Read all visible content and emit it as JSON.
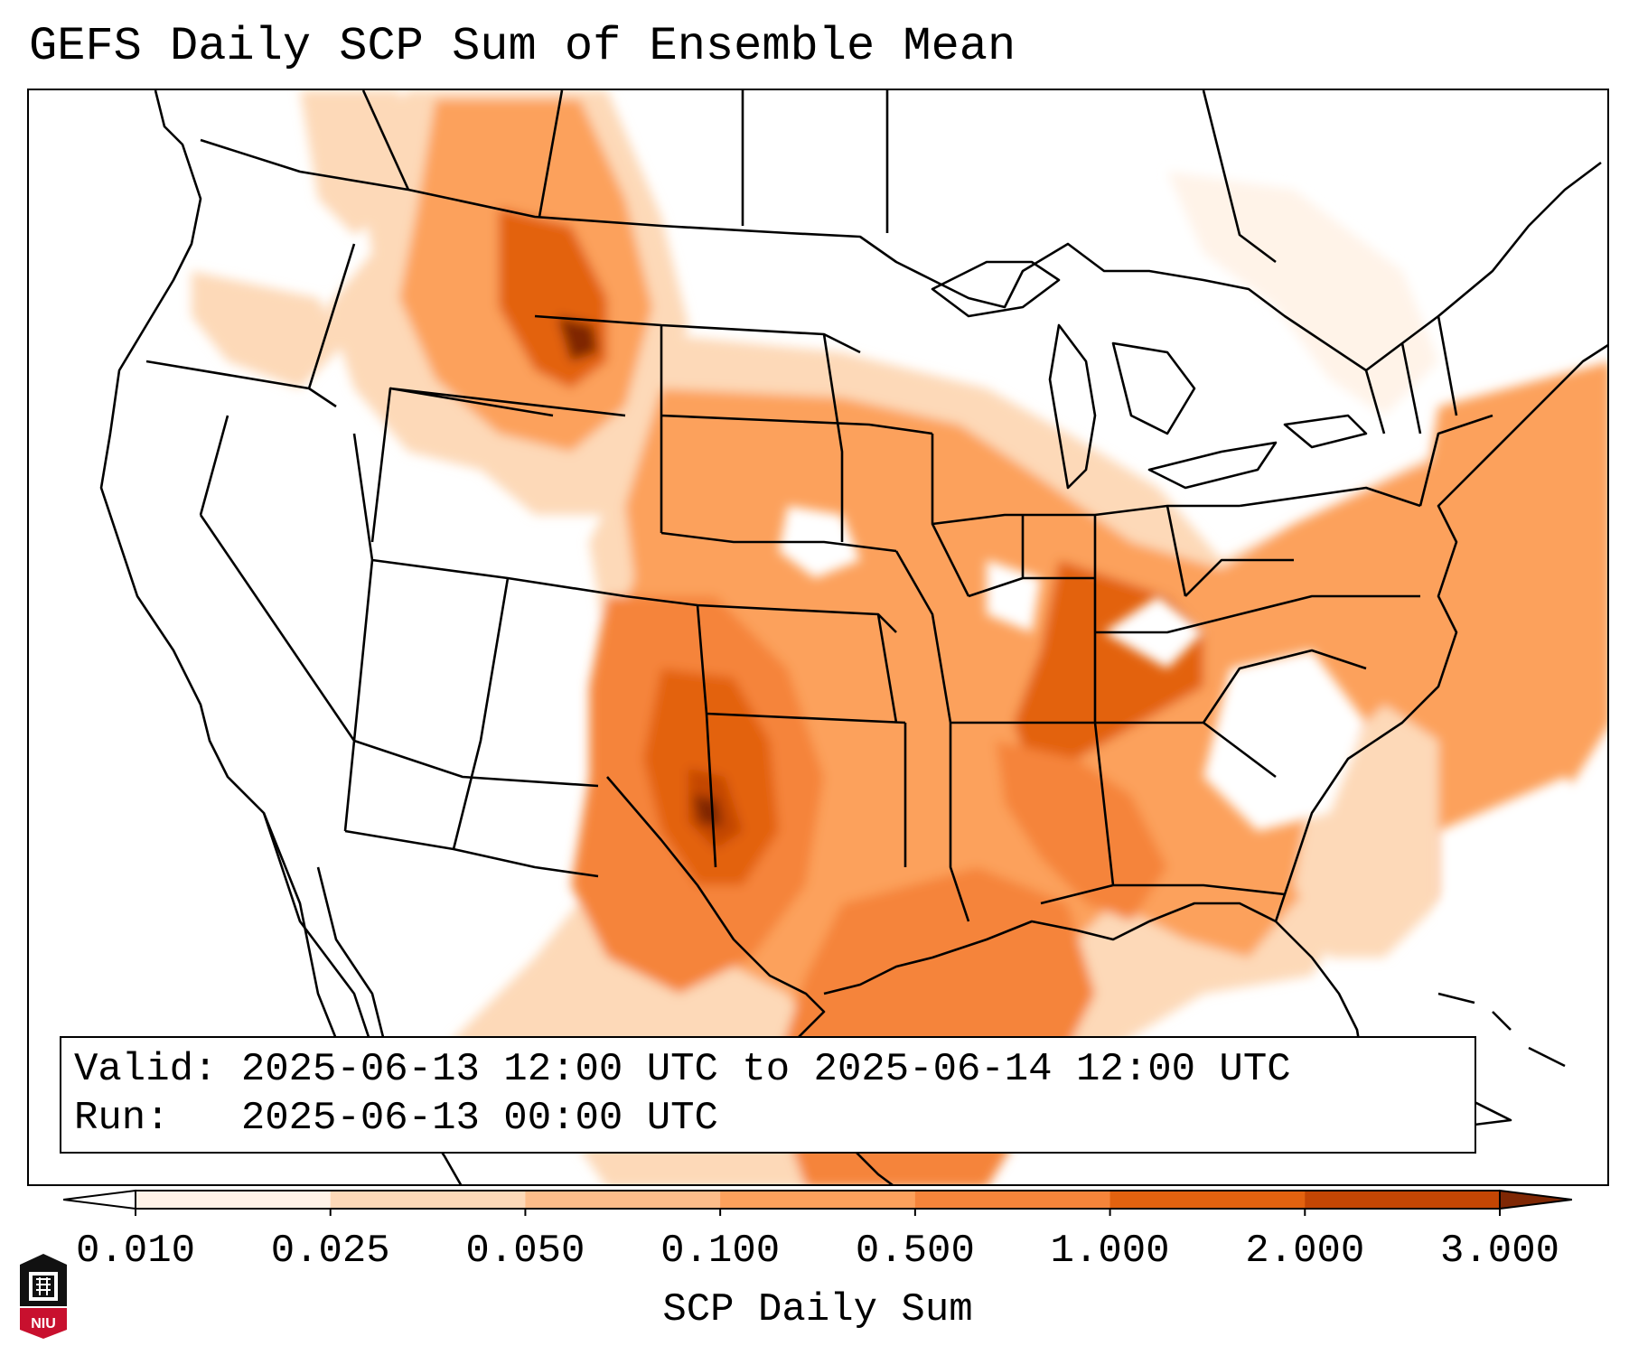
{
  "title": "GEFS Daily SCP Sum of Ensemble Mean",
  "info": {
    "valid_label": "Valid:",
    "valid_value": "2025-06-13 12:00 UTC to 2025-06-14 12:00 UTC",
    "run_label": "Run:",
    "run_value": "2025-06-13 00:00 UTC"
  },
  "colorbar": {
    "label": "SCP Daily Sum",
    "ticks": [
      "0.010",
      "0.025",
      "0.050",
      "0.100",
      "0.500",
      "1.000",
      "2.000",
      "3.000"
    ],
    "colors": [
      "#fff3e8",
      "#fdd9b8",
      "#fdbd8a",
      "#fca15c",
      "#f5843a",
      "#e3620f",
      "#c44604"
    ],
    "under_color": "#ffffff",
    "over_color": "#7f2704"
  },
  "logo": {
    "text": "NIU",
    "colors": {
      "red": "#c8102e",
      "black": "#111111"
    }
  },
  "colors": {
    "land_lines": "#000000",
    "background": "#ffffff"
  }
}
